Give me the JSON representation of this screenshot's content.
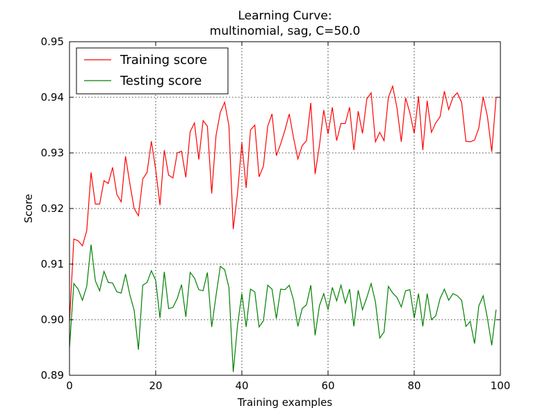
{
  "chart_data": {
    "type": "line",
    "title_lines": [
      "Learning Curve:",
      "multinomial, sag, C=50.0"
    ],
    "xlabel": "Training examples",
    "ylabel": "Score",
    "xlim": [
      0,
      100
    ],
    "ylim": [
      0.89,
      0.95
    ],
    "xticks": [
      "0",
      "20",
      "40",
      "60",
      "80",
      "100"
    ],
    "yticks": [
      "0.89",
      "0.90",
      "0.91",
      "0.92",
      "0.93",
      "0.94",
      "0.95"
    ],
    "grid": true,
    "legend_position": "top-left",
    "x": [
      0,
      1,
      2,
      3,
      4,
      5,
      6,
      7,
      8,
      9,
      10,
      11,
      12,
      13,
      14,
      15,
      16,
      17,
      18,
      19,
      20,
      21,
      22,
      23,
      24,
      25,
      26,
      27,
      28,
      29,
      30,
      31,
      32,
      33,
      34,
      35,
      36,
      37,
      38,
      39,
      40,
      41,
      42,
      43,
      44,
      45,
      46,
      47,
      48,
      49,
      50,
      51,
      52,
      53,
      54,
      55,
      56,
      57,
      58,
      59,
      60,
      61,
      62,
      63,
      64,
      65,
      66,
      67,
      68,
      69,
      70,
      71,
      72,
      73,
      74,
      75,
      76,
      77,
      78,
      79,
      80,
      81,
      82,
      83,
      84,
      85,
      86,
      87,
      88,
      89,
      90,
      91,
      92,
      93,
      94,
      95,
      96,
      97,
      98,
      99
    ],
    "series": [
      {
        "name": "Training score",
        "color": "#ff0000",
        "values": [
          0.8995,
          0.9145,
          0.9142,
          0.9133,
          0.916,
          0.9265,
          0.9208,
          0.9208,
          0.925,
          0.9245,
          0.9274,
          0.9225,
          0.9212,
          0.9294,
          0.9245,
          0.92,
          0.9187,
          0.9253,
          0.9265,
          0.9321,
          0.927,
          0.9206,
          0.9305,
          0.926,
          0.9255,
          0.93,
          0.9303,
          0.9256,
          0.9338,
          0.9354,
          0.9288,
          0.9358,
          0.9348,
          0.9227,
          0.9331,
          0.9373,
          0.9391,
          0.9349,
          0.9163,
          0.9228,
          0.9318,
          0.9237,
          0.9341,
          0.935,
          0.9257,
          0.9276,
          0.9348,
          0.937,
          0.9295,
          0.9316,
          0.9341,
          0.937,
          0.9327,
          0.9289,
          0.9313,
          0.9322,
          0.939,
          0.9262,
          0.9313,
          0.9377,
          0.9334,
          0.9382,
          0.9322,
          0.9353,
          0.9353,
          0.9382,
          0.9305,
          0.9375,
          0.9335,
          0.9397,
          0.9408,
          0.932,
          0.9337,
          0.9322,
          0.94,
          0.942,
          0.9381,
          0.932,
          0.9399,
          0.9372,
          0.9335,
          0.9402,
          0.9305,
          0.9394,
          0.9337,
          0.9354,
          0.9365,
          0.9411,
          0.9378,
          0.94,
          0.9408,
          0.9391,
          0.9321,
          0.932,
          0.9323,
          0.9345,
          0.9401,
          0.9365,
          0.9302,
          0.94
        ]
      },
      {
        "name": "Testing score",
        "color": "#008000",
        "values": [
          0.895,
          0.9065,
          0.9055,
          0.9035,
          0.906,
          0.9135,
          0.907,
          0.9052,
          0.9087,
          0.9067,
          0.9066,
          0.905,
          0.9048,
          0.9082,
          0.9045,
          0.9017,
          0.8946,
          0.9062,
          0.9067,
          0.9088,
          0.9071,
          0.9003,
          0.9086,
          0.902,
          0.9022,
          0.9038,
          0.9063,
          0.9005,
          0.9085,
          0.9075,
          0.9054,
          0.9052,
          0.9085,
          0.8987,
          0.9043,
          0.9096,
          0.909,
          0.9058,
          0.8906,
          0.899,
          0.9047,
          0.8987,
          0.9055,
          0.905,
          0.8987,
          0.8998,
          0.9062,
          0.9055,
          0.9002,
          0.9055,
          0.9054,
          0.9062,
          0.9035,
          0.8988,
          0.902,
          0.9027,
          0.9062,
          0.8972,
          0.9025,
          0.9047,
          0.9018,
          0.9058,
          0.9034,
          0.9062,
          0.903,
          0.9055,
          0.8988,
          0.9053,
          0.9018,
          0.904,
          0.9065,
          0.9032,
          0.8967,
          0.8978,
          0.906,
          0.9048,
          0.904,
          0.9023,
          0.9052,
          0.9054,
          0.9003,
          0.9047,
          0.8988,
          0.9047,
          0.9,
          0.9007,
          0.9038,
          0.9055,
          0.9035,
          0.9047,
          0.9043,
          0.9035,
          0.8988,
          0.8997,
          0.8957,
          0.9025,
          0.9043,
          0.9002,
          0.8954,
          0.9018
        ]
      }
    ]
  }
}
